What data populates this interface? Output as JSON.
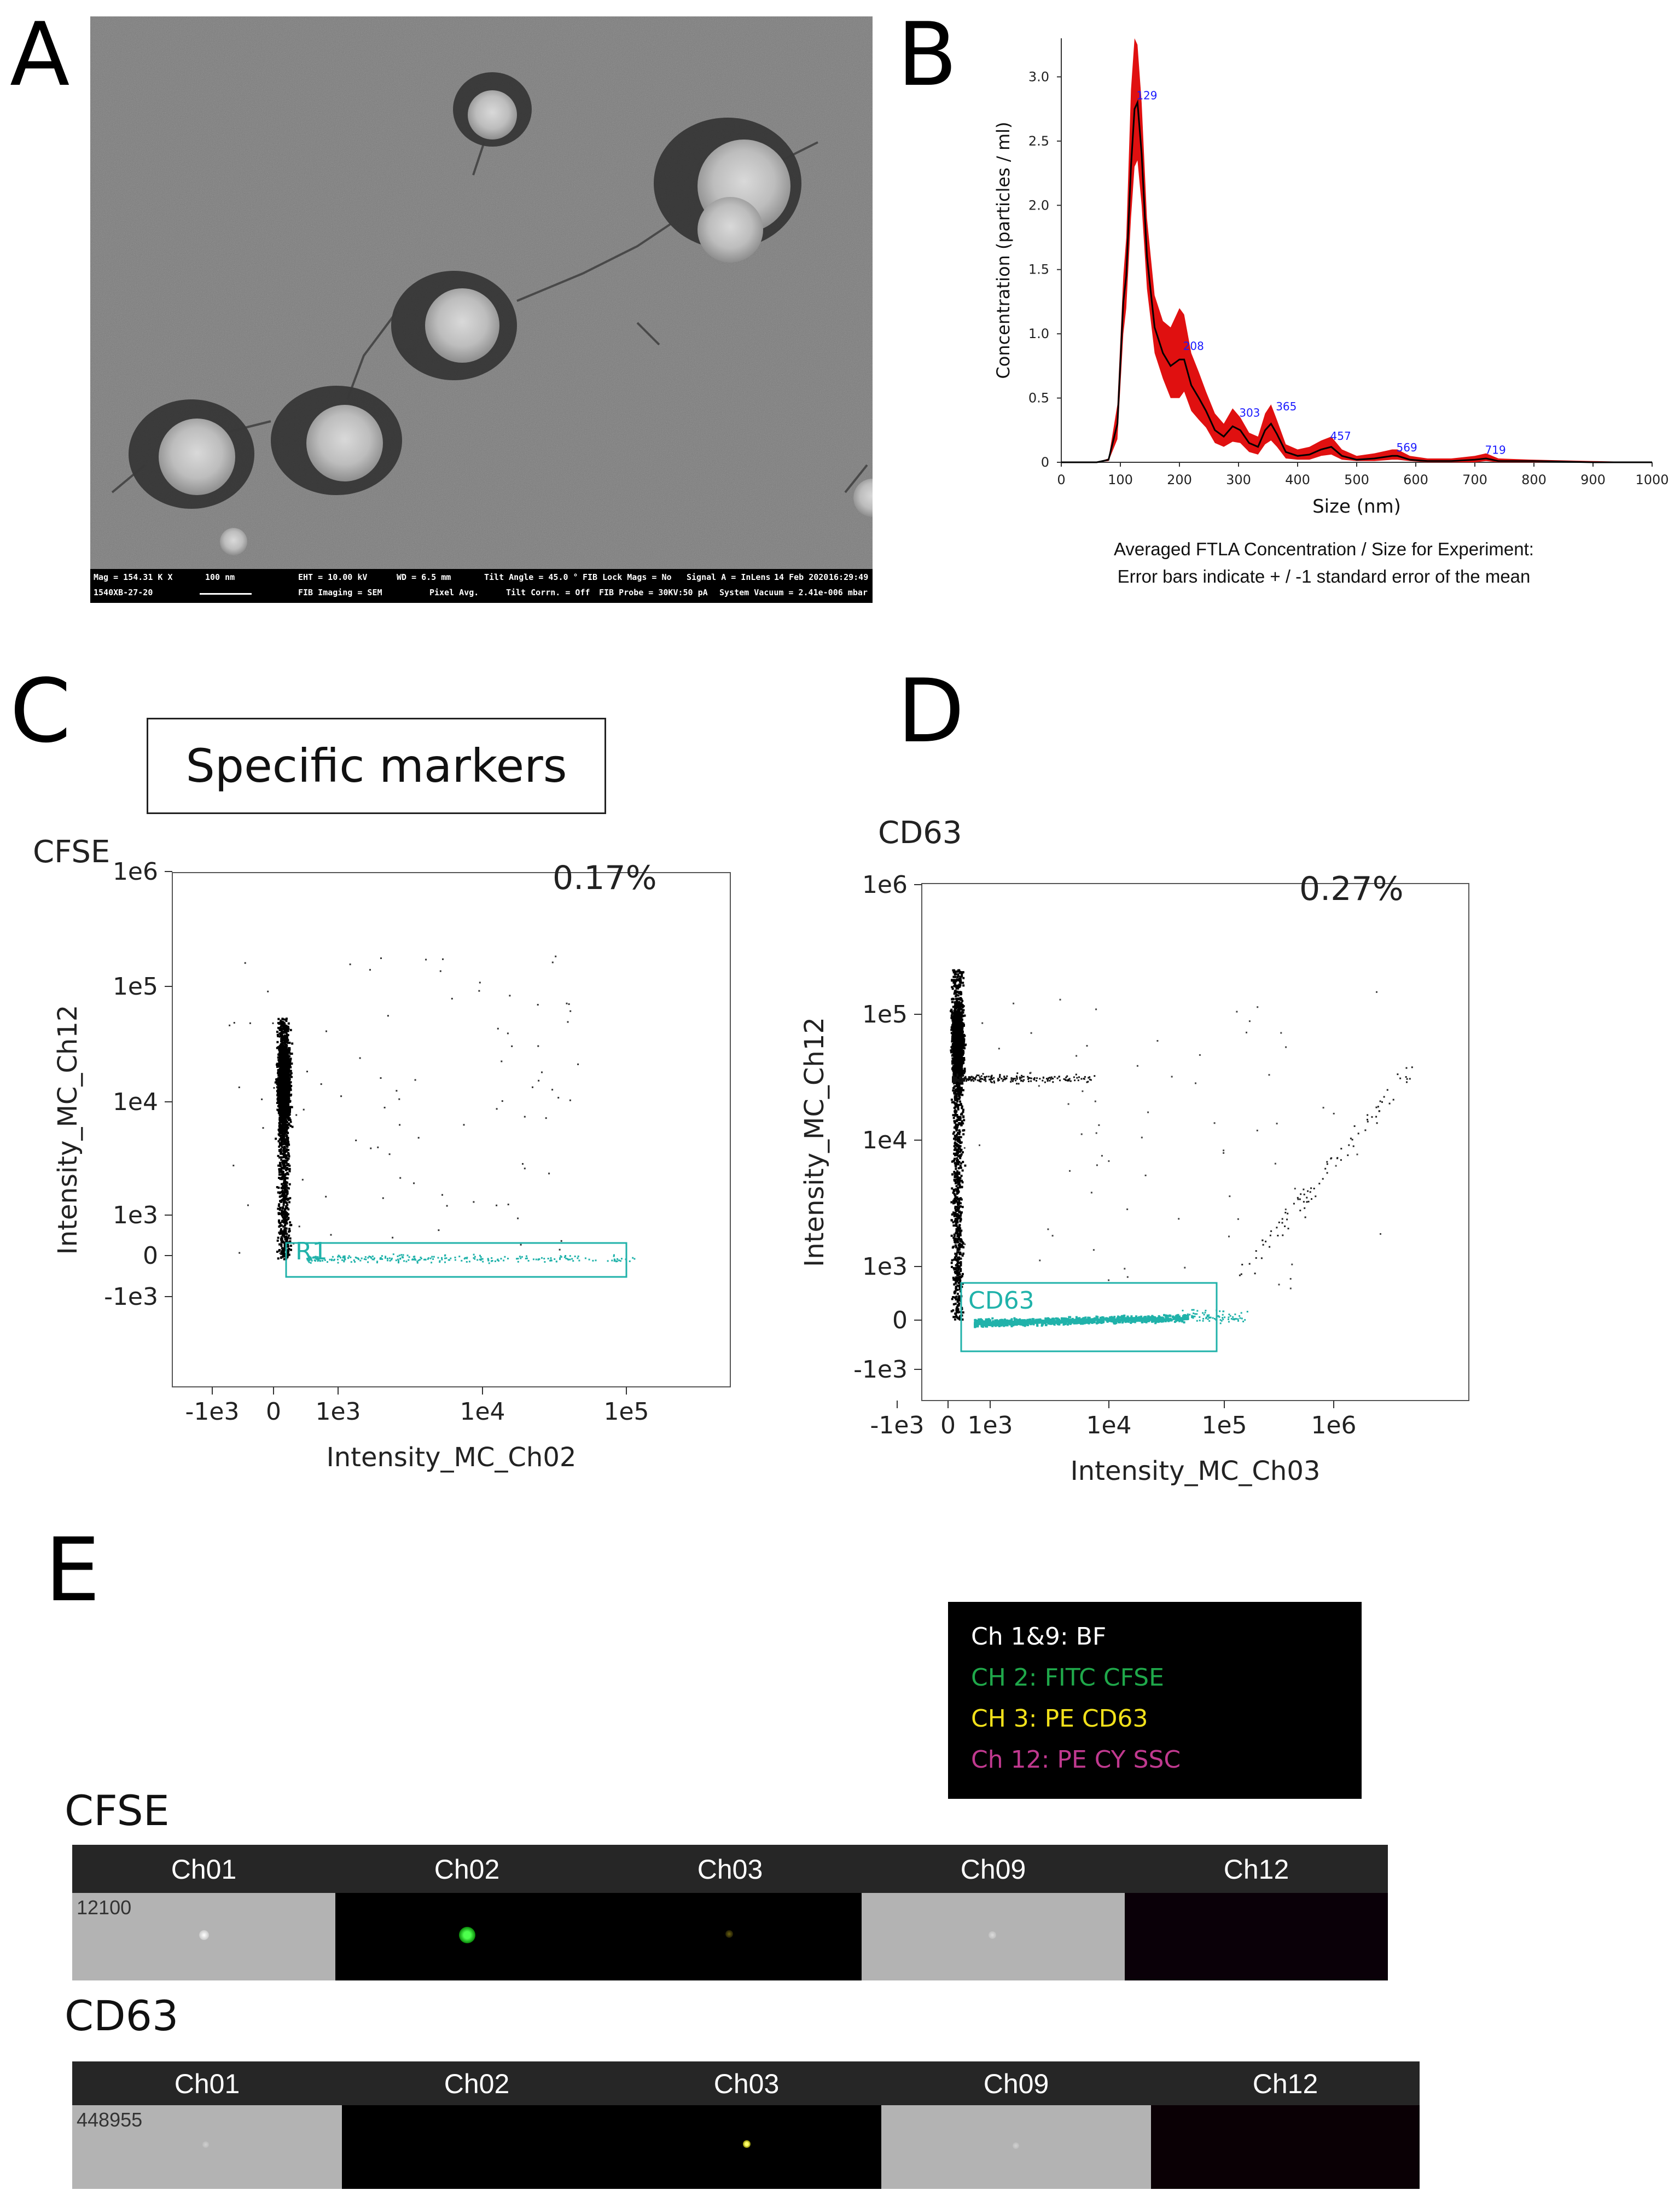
{
  "panels": {
    "a": "A",
    "b": "B",
    "c": "C",
    "d": "D",
    "e": "E"
  },
  "sem": {
    "info": {
      "mag": "Mag = 154.31 K X",
      "scale": "100 nm",
      "image_id": "1540XB-27-20",
      "eht": "EHT = 10.00 kV",
      "wd": "WD = 6.5 mm",
      "tilt": "Tilt Angle = 45.0 °",
      "fib_lock": "FIB Lock Mags = No",
      "signal": "Signal A = InLens",
      "date": "14 Feb 2020",
      "time": "16:29:49",
      "fib_imaging": "FIB Imaging = SEM",
      "pixel": "Pixel Avg.",
      "tilt_corr": "Tilt Corrn. = Off",
      "fib_probe": "FIB Probe = 30KV:50 pA",
      "vacuum": "System Vacuum = 2.41e-006 mbar"
    }
  },
  "chart_data": [
    {
      "type": "line",
      "xlabel": "Size (nm)",
      "ylabel": "Concentration (particles / ml)",
      "xlim": [
        0,
        1000
      ],
      "ylim": [
        0,
        3.3
      ],
      "x_ticks": [
        "0",
        "100",
        "200",
        "300",
        "400",
        "500",
        "600",
        "700",
        "800",
        "900",
        "1000"
      ],
      "y_ticks": [
        "0",
        "0.5",
        "1.0",
        "1.5",
        "2.0",
        "2.5",
        "3.0"
      ],
      "series": [
        {
          "x": [
            0,
            60,
            80,
            95,
            105,
            110,
            118,
            124,
            129,
            136,
            145,
            158,
            172,
            185,
            200,
            208,
            220,
            233,
            245,
            260,
            275,
            290,
            303,
            318,
            333,
            345,
            355,
            365,
            380,
            400,
            420,
            440,
            457,
            475,
            500,
            530,
            560,
            569,
            590,
            620,
            660,
            700,
            719,
            740,
            800,
            900,
            1000
          ],
          "y": [
            0,
            0,
            0.02,
            0.3,
            1.25,
            1.45,
            2.3,
            2.75,
            2.8,
            2.4,
            1.6,
            1.05,
            0.85,
            0.75,
            0.8,
            0.8,
            0.6,
            0.5,
            0.4,
            0.25,
            0.2,
            0.28,
            0.25,
            0.15,
            0.12,
            0.25,
            0.3,
            0.22,
            0.08,
            0.05,
            0.06,
            0.1,
            0.12,
            0.05,
            0.02,
            0.03,
            0.05,
            0.05,
            0.02,
            0.01,
            0.01,
            0.02,
            0.03,
            0.01,
            0.01,
            0,
            0
          ],
          "error_upper": [
            0,
            0,
            0.03,
            0.45,
            1.45,
            1.75,
            2.9,
            3.3,
            3.25,
            2.8,
            1.9,
            1.3,
            1.1,
            1.05,
            1.2,
            1.15,
            0.85,
            0.7,
            0.55,
            0.38,
            0.3,
            0.42,
            0.35,
            0.23,
            0.2,
            0.38,
            0.45,
            0.33,
            0.14,
            0.1,
            0.12,
            0.17,
            0.2,
            0.1,
            0.05,
            0.07,
            0.1,
            0.1,
            0.05,
            0.03,
            0.03,
            0.05,
            0.07,
            0.03,
            0.02,
            0.01,
            0
          ],
          "error_lower": [
            0,
            0,
            0.01,
            0.18,
            1.0,
            1.2,
            1.9,
            2.3,
            2.35,
            2.0,
            1.35,
            0.85,
            0.65,
            0.5,
            0.5,
            0.55,
            0.4,
            0.33,
            0.27,
            0.15,
            0.12,
            0.16,
            0.15,
            0.08,
            0.06,
            0.14,
            0.17,
            0.12,
            0.03,
            0.02,
            0.02,
            0.05,
            0.06,
            0.02,
            0.01,
            0.01,
            0.02,
            0.02,
            0.01,
            0,
            0,
            0,
            0.01,
            0,
            0,
            0,
            0
          ]
        }
      ],
      "peak_labels": [
        {
          "x": 129,
          "y": 2.8,
          "text": "129"
        },
        {
          "x": 208,
          "y": 0.85,
          "text": "208"
        },
        {
          "x": 303,
          "y": 0.33,
          "text": "303"
        },
        {
          "x": 365,
          "y": 0.38,
          "text": "365"
        },
        {
          "x": 457,
          "y": 0.15,
          "text": "457"
        },
        {
          "x": 569,
          "y": 0.06,
          "text": "569"
        },
        {
          "x": 719,
          "y": 0.04,
          "text": "719"
        }
      ],
      "caption_line1": "Averaged FTLA Concentration / Size for Experiment:",
      "caption_line2": "Error bars indicate + / -1 standard error of the mean",
      "colors": {
        "line": "#000000",
        "band": "#e01010",
        "labels": "#1a1aff"
      }
    },
    {
      "type": "scatter",
      "panel_title": "CFSE",
      "xlabel": "Intensity_MC_Ch02",
      "ylabel": "Intensity_MC_Ch12",
      "scale": "logicle",
      "x_ticks": [
        "-1e3",
        "0",
        "1e3",
        "1e4",
        "1e5"
      ],
      "y_ticks": [
        "-1e3",
        "0",
        "1e3",
        "1e4",
        "1e5",
        "1e6"
      ],
      "gate": {
        "name": "R1",
        "percent": "0.17%",
        "x_range": [
          200,
          100000
        ],
        "y_range": [
          -300,
          250
        ]
      },
      "colors": {
        "events": "#000000",
        "gated": "#20b2aa"
      }
    },
    {
      "type": "scatter",
      "panel_title": "CD63",
      "xlabel": "Intensity_MC_Ch03",
      "ylabel": "Intensity_MC_Ch12",
      "scale": "logicle",
      "x_ticks": [
        "-1e3",
        "0",
        "1e3",
        "1e4",
        "1e5",
        "1e6"
      ],
      "y_ticks": [
        "-1e3",
        "0",
        "1e3",
        "1e4",
        "1e5",
        "1e6"
      ],
      "gate": {
        "name": "CD63",
        "percent": "0.27%",
        "x_range": [
          200,
          110000
        ],
        "y_range": [
          -400,
          700
        ]
      },
      "colors": {
        "events": "#000000",
        "gated": "#20b2aa"
      }
    }
  ],
  "specific_markers": "Specific markers",
  "legend": {
    "line1": "Ch 1&9: BF",
    "line2": "CH 2: FITC CFSE",
    "line3": "CH 3: PE  CD63",
    "line4": "Ch 12: PE CY SSC",
    "colors": {
      "line1": "#ffffff",
      "line2": "#1fa84a",
      "line3": "#f2e11a",
      "line4": "#c0398f"
    }
  },
  "strips": {
    "cfse": {
      "title": "CFSE",
      "event_id": "12100",
      "channels": [
        "Ch01",
        "Ch02",
        "Ch03",
        "Ch09",
        "Ch12"
      ]
    },
    "cd63": {
      "title": "CD63",
      "event_id": "448955",
      "channels": [
        "Ch01",
        "Ch02",
        "Ch03",
        "Ch09",
        "Ch12"
      ]
    }
  }
}
